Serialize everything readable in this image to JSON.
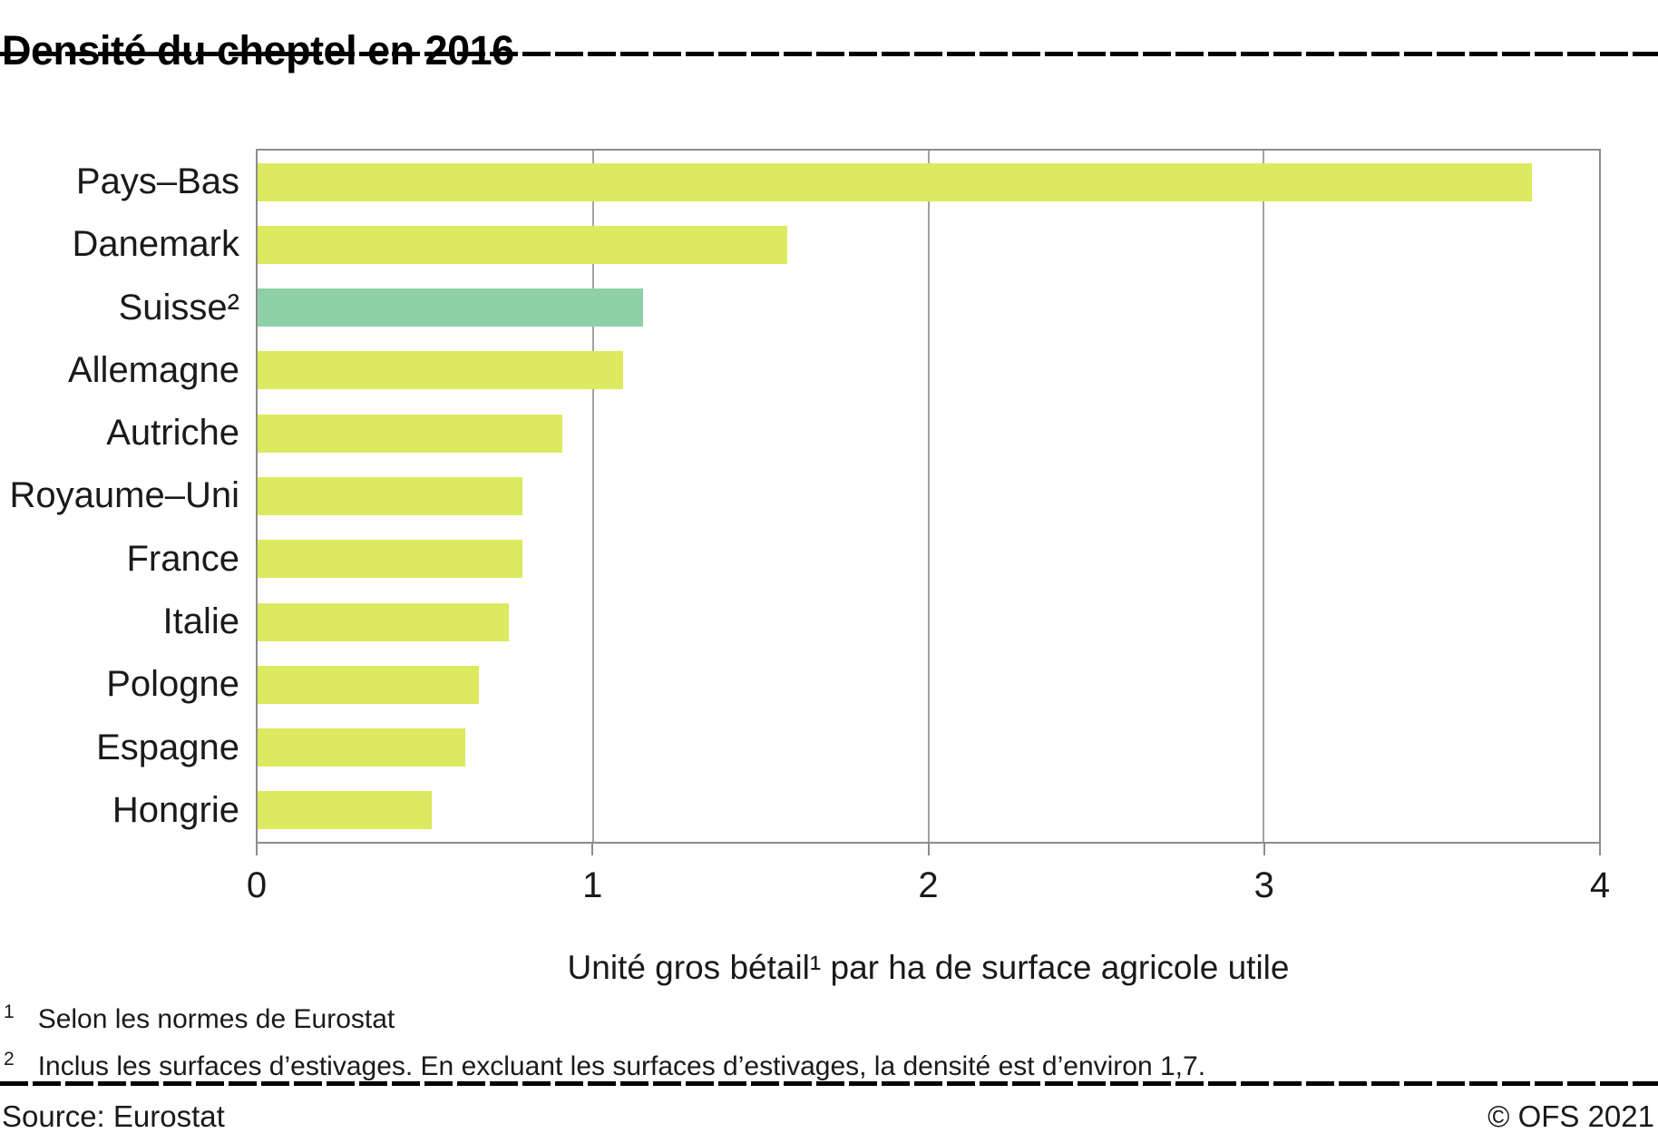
{
  "title": "Densité du cheptel en 2016",
  "chart_data": {
    "type": "bar",
    "orientation": "horizontal",
    "title": "Densité du cheptel en 2016",
    "categories": [
      "Pays–Bas",
      "Danemark",
      "Suisse²",
      "Allemagne",
      "Autriche",
      "Royaume–Uni",
      "France",
      "Italie",
      "Pologne",
      "Espagne",
      "Hongrie"
    ],
    "values": [
      3.8,
      1.58,
      1.15,
      1.09,
      0.91,
      0.79,
      0.79,
      0.75,
      0.66,
      0.62,
      0.52
    ],
    "colors": [
      "#dde95f",
      "#dde95f",
      "#90d0a8",
      "#dde95f",
      "#dde95f",
      "#dde95f",
      "#dde95f",
      "#dde95f",
      "#dde95f",
      "#dde95f",
      "#dde95f"
    ],
    "bar_color_default": "#dde95f",
    "bar_color_highlight": "#90d0a8",
    "highlight_category": "Suisse²",
    "xlabel": "Unité gros bétail¹ par ha de surface agricole utile",
    "xlim": [
      0,
      4
    ],
    "xticks": [
      "0",
      "1",
      "2",
      "3",
      "4"
    ],
    "gridlines_at": [
      1,
      2,
      3
    ],
    "legend": "none",
    "grid": "vertical"
  },
  "footnotes": [
    {
      "marker": "1",
      "text": "Selon les normes de Eurostat"
    },
    {
      "marker": "2",
      "text": "Inclus les surfaces d’estivages. En excluant les surfaces d’estivages, la densité est d’environ 1,7."
    }
  ],
  "footer": {
    "source": "Source: Eurostat",
    "copyright": "© OFS 2021"
  }
}
